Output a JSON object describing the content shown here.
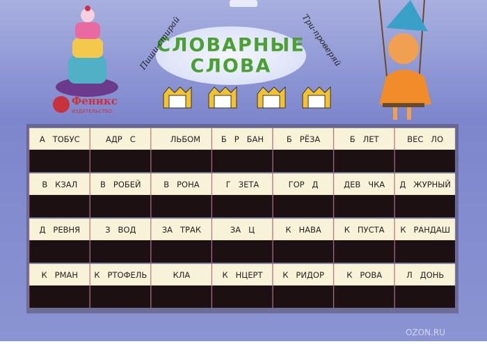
{
  "header": {
    "title_lines": [
      "СЛОВАРНЫЕ",
      "СЛОВА"
    ],
    "left_caption": "Пиши-стирай",
    "right_caption": "Три-проверяй"
  },
  "publisher": {
    "name": "Феникс",
    "subtitle": "ИЗДАТЕЛЬСТВО"
  },
  "board": {
    "rows": [
      [
        "А   ТОБУС",
        "АДР   С",
        "   ЛЬБОМ",
        "Б   Р   БАН",
        "Б   РЁЗА",
        "Б   ЛЕТ",
        "ВЕС   ЛО"
      ],
      [
        "В   КЗАЛ",
        "В   РОБЕЙ",
        "В   РОНА",
        "Г   ЗЕТА",
        "ГОР   Д",
        "ДЕВ   ЧКА",
        "Д   ЖУРНЫЙ"
      ],
      [
        "Д   РЕВНЯ",
        "З   ВОД",
        "ЗА   ТРАК",
        "ЗА   Ц",
        "К   НАВА",
        "К   ПУСТА",
        "К   РАНДАШ"
      ],
      [
        "К   РМАН",
        "К   РТОФЕЛЬ",
        "КЛА",
        "К   НЦЕРТ",
        "К   РИДОР",
        "К   РОВА",
        "Л   ДОНЬ"
      ]
    ]
  },
  "watermark": "OZON.RU"
}
